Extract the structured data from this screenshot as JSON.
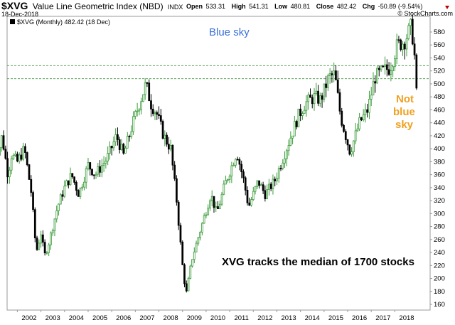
{
  "header": {
    "symbol": "$XVG",
    "name": "Value Line Geometric Index (NBD)",
    "exchange": "INDX",
    "date": "18-Dec-2018",
    "open_label": "Open",
    "open": "533.31",
    "high_label": "High",
    "high": "541.31",
    "low_label": "Low",
    "low": "480.81",
    "close_label": "Close",
    "close": "482.42",
    "chg_label": "Chg",
    "chg": "-50.89 (-9.54%)",
    "source": "© StockCharts.com",
    "legend": "$XVG (Monthly) 482.42 (18 Dec)"
  },
  "colors": {
    "up": "#3c9c3c",
    "down": "#000000",
    "ref_line": "#5aa05a",
    "blue_sky": "#3a6fd8",
    "not_blue_sky": "#f0a020"
  },
  "annotations": {
    "blue_sky": "Blue sky",
    "not_blue_sky_line1": "Not",
    "not_blue_sky_line2": "blue",
    "not_blue_sky_line3": "sky",
    "tracks": "XVG tracks the median of 1700 stocks"
  },
  "chart_data": {
    "type": "candlestick",
    "interval": "monthly",
    "ylim": [
      150,
      600
    ],
    "yticks": [
      160,
      180,
      200,
      220,
      240,
      260,
      280,
      300,
      320,
      340,
      360,
      380,
      400,
      420,
      440,
      460,
      480,
      500,
      520,
      540,
      560,
      580
    ],
    "xlabels": [
      "2002",
      "2003",
      "2004",
      "2005",
      "2006",
      "2007",
      "2008",
      "2009",
      "2010",
      "2011",
      "2012",
      "2013",
      "2014",
      "2015",
      "2016",
      "2017",
      "2018"
    ],
    "ref_lines": [
      528,
      508
    ],
    "anchors": [
      [
        2001.0,
        410
      ],
      [
        2001.2,
        395
      ],
      [
        2001.35,
        420
      ],
      [
        2001.6,
        360
      ],
      [
        2001.75,
        390
      ],
      [
        2002.0,
        380
      ],
      [
        2002.3,
        400
      ],
      [
        2002.6,
        330
      ],
      [
        2002.8,
        240
      ],
      [
        2003.0,
        270
      ],
      [
        2003.15,
        235
      ],
      [
        2003.3,
        250
      ],
      [
        2003.7,
        310
      ],
      [
        2004.0,
        340
      ],
      [
        2004.3,
        360
      ],
      [
        2004.6,
        330
      ],
      [
        2005.0,
        375
      ],
      [
        2005.3,
        360
      ],
      [
        2005.8,
        385
      ],
      [
        2006.2,
        420
      ],
      [
        2006.5,
        390
      ],
      [
        2006.9,
        440
      ],
      [
        2007.45,
        500
      ],
      [
        2007.65,
        470
      ],
      [
        2007.9,
        455
      ],
      [
        2008.2,
        420
      ],
      [
        2008.5,
        400
      ],
      [
        2008.75,
        320
      ],
      [
        2009.0,
        220
      ],
      [
        2009.15,
        175
      ],
      [
        2009.4,
        230
      ],
      [
        2009.8,
        280
      ],
      [
        2010.2,
        330
      ],
      [
        2010.45,
        300
      ],
      [
        2010.8,
        345
      ],
      [
        2011.3,
        395
      ],
      [
        2011.6,
        350
      ],
      [
        2011.8,
        310
      ],
      [
        2012.2,
        350
      ],
      [
        2012.5,
        330
      ],
      [
        2012.9,
        350
      ],
      [
        2013.4,
        400
      ],
      [
        2013.9,
        450
      ],
      [
        2014.2,
        470
      ],
      [
        2014.6,
        480
      ],
      [
        2014.85,
        475
      ],
      [
        2015.2,
        510
      ],
      [
        2015.45,
        515
      ],
      [
        2015.7,
        450
      ],
      [
        2016.1,
        395
      ],
      [
        2016.5,
        440
      ],
      [
        2016.85,
        460
      ],
      [
        2017.15,
        510
      ],
      [
        2017.5,
        520
      ],
      [
        2017.8,
        525
      ],
      [
        2018.1,
        560
      ],
      [
        2018.4,
        565
      ],
      [
        2018.7,
        590
      ],
      [
        2018.83,
        545
      ],
      [
        2018.92,
        482
      ]
    ]
  }
}
